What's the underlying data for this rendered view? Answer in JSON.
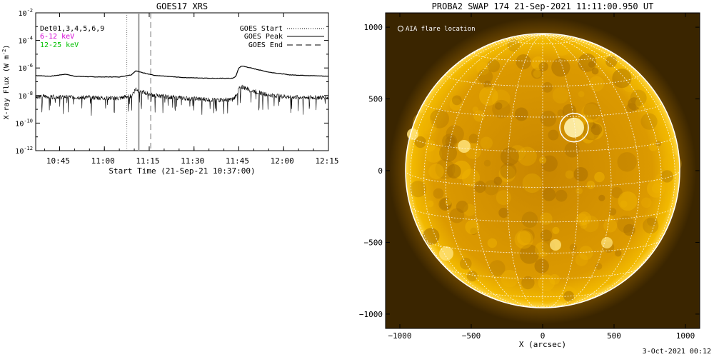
{
  "chart_data": [
    {
      "type": "line",
      "title": "GOES17 XRS",
      "xlabel": "Start Time (21-Sep-21 10:37:00)",
      "ylabel": "X-ray Flux (W m",
      "ylabel_sup": "-2",
      "ylabel_close": ")",
      "x_unit": "minutes since 10:37",
      "xlim": [
        0,
        98
      ],
      "ylim_log10": [
        -12,
        -2
      ],
      "log_scale_y": true,
      "x_ticks": [
        {
          "label": "10:45",
          "x": 8
        },
        {
          "label": "11:00",
          "x": 23
        },
        {
          "label": "11:15",
          "x": 38
        },
        {
          "label": "11:30",
          "x": 53
        },
        {
          "label": "11:45",
          "x": 68
        },
        {
          "label": "12:00",
          "x": 83
        },
        {
          "label": "12:15",
          "x": 98
        }
      ],
      "y_ticks": [
        {
          "base": "10",
          "exp": "-2",
          "value": -2
        },
        {
          "base": "10",
          "exp": "-4",
          "value": -4
        },
        {
          "base": "10",
          "exp": "-6",
          "value": -6
        },
        {
          "base": "10",
          "exp": "-8",
          "value": -8
        },
        {
          "base": "10",
          "exp": "-10",
          "value": -10
        },
        {
          "base": "10",
          "exp": "-12",
          "value": -12
        }
      ],
      "legend_left": [
        {
          "label": "Det01,3,4,5,6,9",
          "color": "#000000"
        },
        {
          "label": "6-12 keV",
          "color": "#d400d4"
        },
        {
          "label": "12-25 keV",
          "color": "#00c000"
        }
      ],
      "legend_right": [
        {
          "label": "GOES Start",
          "style": "dotted"
        },
        {
          "label": "GOES Peak",
          "style": "solid"
        },
        {
          "label": "GOES End",
          "style": "dashed"
        }
      ],
      "markers": {
        "start": 30.5,
        "peak": 34.5,
        "end": 38.5
      },
      "series": [
        {
          "color": "#000000",
          "points": [
            [
              0,
              -6.55
            ],
            [
              5,
              -6.6
            ],
            [
              10,
              -6.45
            ],
            [
              13,
              -6.6
            ],
            [
              20,
              -6.65
            ],
            [
              28,
              -6.65
            ],
            [
              32,
              -6.5
            ],
            [
              33.5,
              -6.2
            ],
            [
              35,
              -6.3
            ],
            [
              40,
              -6.55
            ],
            [
              50,
              -6.7
            ],
            [
              60,
              -6.75
            ],
            [
              66,
              -6.75
            ],
            [
              67,
              -6.6
            ],
            [
              68,
              -6.0
            ],
            [
              69,
              -5.85
            ],
            [
              72,
              -6.0
            ],
            [
              78,
              -6.3
            ],
            [
              85,
              -6.5
            ],
            [
              98,
              -6.6
            ]
          ]
        },
        {
          "color": "#000000",
          "points": [
            [
              0,
              -8.05
            ],
            [
              10,
              -8.1
            ],
            [
              20,
              -8.15
            ],
            [
              28,
              -8.2
            ],
            [
              32,
              -8.0
            ],
            [
              33.5,
              -7.5
            ],
            [
              35,
              -7.7
            ],
            [
              40,
              -8.0
            ],
            [
              50,
              -8.2
            ],
            [
              60,
              -8.3
            ],
            [
              66,
              -8.3
            ],
            [
              67,
              -8.0
            ],
            [
              68,
              -7.5
            ],
            [
              69,
              -7.35
            ],
            [
              72,
              -7.6
            ],
            [
              78,
              -7.95
            ],
            [
              85,
              -8.1
            ],
            [
              98,
              -8.15
            ]
          ]
        }
      ]
    },
    {
      "type": "scatter",
      "title": "PROBA2 SWAP 174 21-Sep-2021 11:11:00.950 UT",
      "xlabel": "X (arcsec)",
      "ylabel": "",
      "xlim": [
        -1100,
        1100
      ],
      "ylim": [
        -1100,
        1100
      ],
      "x_ticks": [
        -1000,
        -500,
        0,
        500,
        1000
      ],
      "y_ticks": [
        -1000,
        -500,
        0,
        500,
        1000
      ],
      "legend": {
        "label": "AIA flare location",
        "marker": "circle",
        "placement": "top-left"
      },
      "solar_radius_arcsec": 960,
      "flare_location": {
        "x": 220,
        "y": 300,
        "radius": 100
      }
    }
  ],
  "footer": "3-Oct-2021 00:12",
  "colors": {
    "background": "#ffffff",
    "solar_disk": "#e3a000",
    "solar_limb": "#ffd34d",
    "off_disk": "#3a2500",
    "grid": "#ffffff"
  }
}
